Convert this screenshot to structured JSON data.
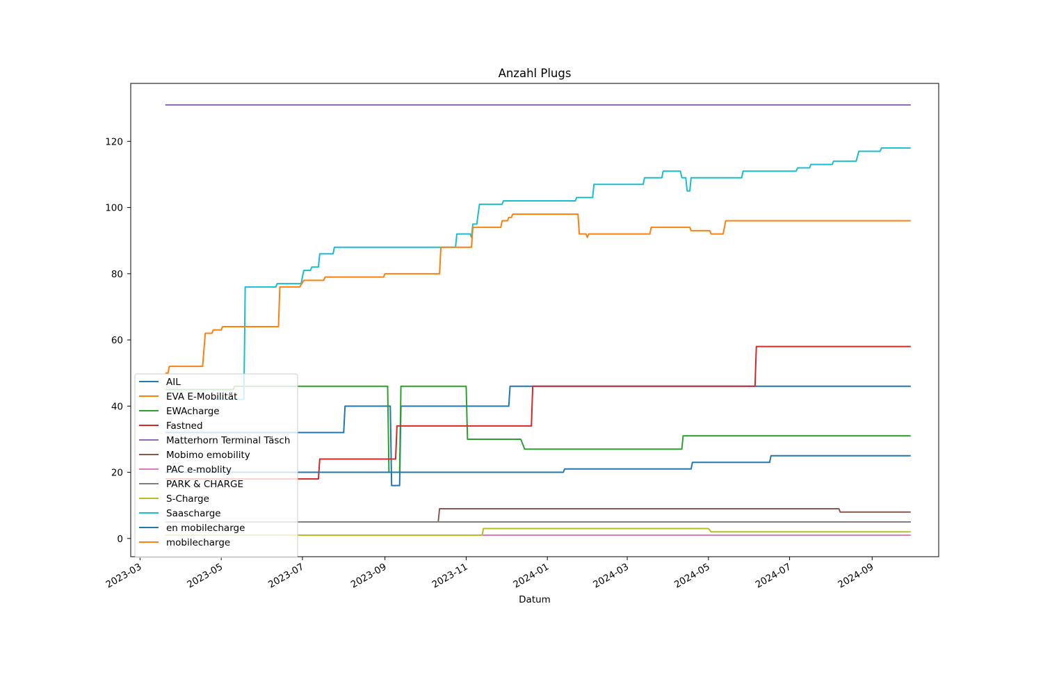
{
  "chart_data": {
    "type": "line",
    "title": "Anzahl Plugs",
    "xlabel": "Datum",
    "ylabel": "",
    "x_range": [
      "2023-02-22",
      "2024-10-21"
    ],
    "ylim": [
      -5.5,
      137.5
    ],
    "x_ticks": [
      "2023-03",
      "2023-05",
      "2023-07",
      "2023-09",
      "2023-11",
      "2024-01",
      "2024-03",
      "2024-05",
      "2024-07",
      "2024-09"
    ],
    "y_ticks": [
      0,
      20,
      40,
      60,
      80,
      100,
      120
    ],
    "legend_position": "lower-left",
    "grid": false,
    "series": [
      {
        "name": "AIL",
        "color": "#1f77b4",
        "points": [
          [
            "2023-03-20",
            32
          ],
          [
            "2023-08-01",
            32
          ],
          [
            "2023-08-02",
            40
          ],
          [
            "2023-09-05",
            40
          ],
          [
            "2023-09-06",
            16
          ],
          [
            "2023-09-12",
            16
          ],
          [
            "2023-09-13",
            40
          ],
          [
            "2023-12-03",
            40
          ],
          [
            "2023-12-04",
            46
          ],
          [
            "2024-09-30",
            46
          ]
        ]
      },
      {
        "name": "EVA E-Mobilität",
        "color": "#ff7f0e",
        "points": [
          [
            "2023-03-20",
            5
          ],
          [
            "2024-09-30",
            5
          ]
        ]
      },
      {
        "name": "EWAcharge",
        "color": "#2ca02c",
        "points": [
          [
            "2023-03-20",
            45
          ],
          [
            "2023-05-10",
            45
          ],
          [
            "2023-05-11",
            46
          ],
          [
            "2023-09-03",
            46
          ],
          [
            "2023-09-04",
            20
          ],
          [
            "2023-09-12",
            20
          ],
          [
            "2023-09-13",
            46
          ],
          [
            "2023-11-01",
            46
          ],
          [
            "2023-11-02",
            30
          ],
          [
            "2023-12-12",
            30
          ],
          [
            "2023-12-15",
            27
          ],
          [
            "2024-04-11",
            27
          ],
          [
            "2024-04-12",
            31
          ],
          [
            "2024-09-30",
            31
          ]
        ]
      },
      {
        "name": "Fastned",
        "color": "#d62728",
        "points": [
          [
            "2023-03-20",
            18
          ],
          [
            "2023-07-13",
            18
          ],
          [
            "2023-07-14",
            24
          ],
          [
            "2023-09-09",
            24
          ],
          [
            "2023-09-10",
            34
          ],
          [
            "2023-12-20",
            34
          ],
          [
            "2023-12-21",
            46
          ],
          [
            "2024-06-05",
            46
          ],
          [
            "2024-06-06",
            58
          ],
          [
            "2024-09-30",
            58
          ]
        ]
      },
      {
        "name": "Matterhorn Terminal Täsch",
        "color": "#9467bd",
        "points": [
          [
            "2023-03-20",
            131
          ],
          [
            "2024-09-30",
            131
          ]
        ]
      },
      {
        "name": "Mobimo emobility",
        "color": "#8c564b",
        "points": [
          [
            "2023-03-20",
            5
          ],
          [
            "2023-10-11",
            5
          ],
          [
            "2023-10-12",
            9
          ],
          [
            "2024-08-07",
            9
          ],
          [
            "2024-08-08",
            8
          ],
          [
            "2024-09-30",
            8
          ]
        ]
      },
      {
        "name": "PAC e-moblity",
        "color": "#e377c2",
        "points": [
          [
            "2023-11-13",
            1
          ],
          [
            "2024-09-30",
            1
          ]
        ]
      },
      {
        "name": "PARK & CHARGE",
        "color": "#7f7f7f",
        "points": [
          [
            "2023-03-20",
            5
          ],
          [
            "2024-09-30",
            5
          ]
        ]
      },
      {
        "name": "S-Charge",
        "color": "#bcbd22",
        "points": [
          [
            "2023-03-20",
            1
          ],
          [
            "2023-11-13",
            1
          ],
          [
            "2023-11-14",
            3
          ],
          [
            "2024-05-01",
            3
          ],
          [
            "2024-05-03",
            2
          ],
          [
            "2024-09-30",
            2
          ]
        ]
      },
      {
        "name": "Saascharge",
        "color": "#17becf",
        "points": [
          [
            "2023-04-25",
            42
          ],
          [
            "2023-05-18",
            42
          ],
          [
            "2023-05-19",
            76
          ],
          [
            "2023-06-11",
            76
          ],
          [
            "2023-06-12",
            77
          ],
          [
            "2023-06-30",
            77
          ],
          [
            "2023-07-02",
            81
          ],
          [
            "2023-07-07",
            81
          ],
          [
            "2023-07-08",
            82
          ],
          [
            "2023-07-13",
            82
          ],
          [
            "2023-07-14",
            86
          ],
          [
            "2023-07-24",
            86
          ],
          [
            "2023-07-25",
            88
          ],
          [
            "2023-10-24",
            88
          ],
          [
            "2023-10-25",
            92
          ],
          [
            "2023-11-04",
            92
          ],
          [
            "2023-11-05",
            91
          ],
          [
            "2023-11-06",
            95
          ],
          [
            "2023-11-09",
            95
          ],
          [
            "2023-11-11",
            101
          ],
          [
            "2023-11-28",
            101
          ],
          [
            "2023-11-29",
            102
          ],
          [
            "2024-01-22",
            102
          ],
          [
            "2024-01-23",
            103
          ],
          [
            "2024-02-04",
            103
          ],
          [
            "2024-02-05",
            107
          ],
          [
            "2024-03-13",
            107
          ],
          [
            "2024-03-14",
            109
          ],
          [
            "2024-03-27",
            109
          ],
          [
            "2024-03-28",
            111
          ],
          [
            "2024-04-10",
            111
          ],
          [
            "2024-04-11",
            109
          ],
          [
            "2024-04-14",
            109
          ],
          [
            "2024-04-15",
            105
          ],
          [
            "2024-04-17",
            105
          ],
          [
            "2024-04-18",
            109
          ],
          [
            "2024-05-26",
            109
          ],
          [
            "2024-05-27",
            111
          ],
          [
            "2024-07-06",
            111
          ],
          [
            "2024-07-07",
            112
          ],
          [
            "2024-07-16",
            112
          ],
          [
            "2024-07-17",
            113
          ],
          [
            "2024-08-02",
            113
          ],
          [
            "2024-08-03",
            114
          ],
          [
            "2024-08-20",
            114
          ],
          [
            "2024-08-22",
            117
          ],
          [
            "2024-09-07",
            117
          ],
          [
            "2024-09-08",
            118
          ],
          [
            "2024-09-30",
            118
          ]
        ]
      },
      {
        "name": "en mobilecharge",
        "color": "#1f77b4",
        "points": [
          [
            "2023-03-20",
            20
          ],
          [
            "2024-01-13",
            20
          ],
          [
            "2024-01-14",
            21
          ],
          [
            "2024-04-18",
            21
          ],
          [
            "2024-04-19",
            23
          ],
          [
            "2024-06-16",
            23
          ],
          [
            "2024-06-17",
            25
          ],
          [
            "2024-09-30",
            25
          ]
        ]
      },
      {
        "name": "mobilecharge",
        "color": "#ff7f0e",
        "points": [
          [
            "2023-03-20",
            50
          ],
          [
            "2023-03-22",
            50
          ],
          [
            "2023-03-23",
            52
          ],
          [
            "2023-04-17",
            52
          ],
          [
            "2023-04-19",
            62
          ],
          [
            "2023-04-24",
            62
          ],
          [
            "2023-04-25",
            63
          ],
          [
            "2023-05-01",
            63
          ],
          [
            "2023-05-02",
            64
          ],
          [
            "2023-06-13",
            64
          ],
          [
            "2023-06-14",
            76
          ],
          [
            "2023-06-29",
            76
          ],
          [
            "2023-07-02",
            78
          ],
          [
            "2023-07-17",
            78
          ],
          [
            "2023-07-18",
            79
          ],
          [
            "2023-08-31",
            79
          ],
          [
            "2023-09-01",
            80
          ],
          [
            "2023-10-12",
            80
          ],
          [
            "2023-10-13",
            88
          ],
          [
            "2023-11-05",
            88
          ],
          [
            "2023-11-06",
            94
          ],
          [
            "2023-11-27",
            94
          ],
          [
            "2023-11-28",
            96
          ],
          [
            "2023-12-02",
            96
          ],
          [
            "2023-12-03",
            97
          ],
          [
            "2023-12-05",
            97
          ],
          [
            "2023-12-06",
            98
          ],
          [
            "2024-01-24",
            98
          ],
          [
            "2024-01-25",
            92
          ],
          [
            "2024-01-30",
            92
          ],
          [
            "2024-01-31",
            91
          ],
          [
            "2024-02-01",
            92
          ],
          [
            "2024-03-18",
            92
          ],
          [
            "2024-03-19",
            94
          ],
          [
            "2024-04-17",
            94
          ],
          [
            "2024-04-18",
            93
          ],
          [
            "2024-05-02",
            93
          ],
          [
            "2024-05-03",
            92
          ],
          [
            "2024-05-12",
            92
          ],
          [
            "2024-05-13",
            94
          ],
          [
            "2024-05-14",
            96
          ],
          [
            "2024-09-30",
            96
          ]
        ]
      }
    ]
  }
}
